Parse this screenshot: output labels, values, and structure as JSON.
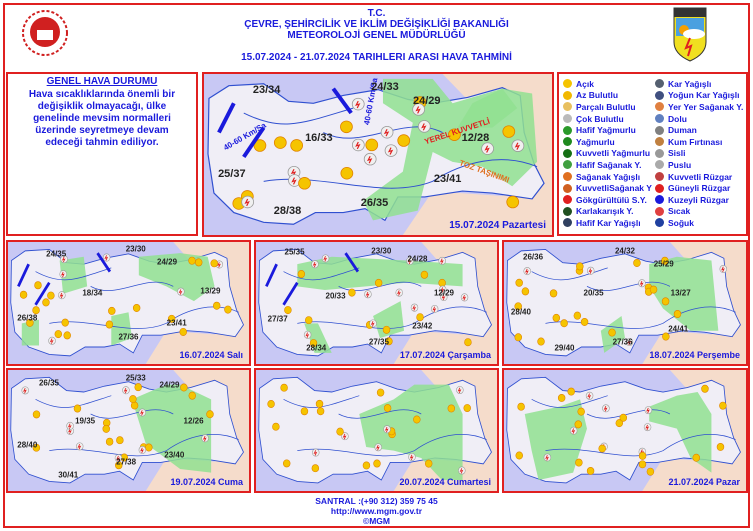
{
  "header": {
    "tc": "T.C.",
    "ministry": "ÇEVRE, ŞEHİRCİLİK VE İKLİM DEĞİŞİKLİĞİ BAKANLIĞI",
    "directorate": "METEOROLOJİ  GENEL  MÜDÜRLÜĞÜ",
    "date_range": "15.07.2024  -  21.07.2024    TARIHLERI  ARASI  HAVA  TAHMİNİ",
    "logo_text": "METEOROLOJİ"
  },
  "general": {
    "title": "GENEL HAVA DURUMU",
    "text": "Hava sıcaklıklarında önemli bir değişiklik olmayacağı, ülke genelinde mevsim normalleri üzerinde seyretmeye devam edeceği tahmin ediliyor."
  },
  "main_map": {
    "date": "15.07.2024 Pazartesi",
    "temps": [
      "23/34",
      "24/33",
      "24/29",
      "16/33",
      "12/28",
      "25/37",
      "23/41",
      "26/35",
      "28/38"
    ],
    "notes": {
      "local_strong": "YEREL KUVVETLİ",
      "dust": "TOZ TAŞINIMI",
      "wind_west": "40-60 Km/Sa",
      "wind_north": "40-60 Km/Sa"
    }
  },
  "days": [
    {
      "date": "16.07.2024 Salı",
      "temps": [
        "24/35",
        "23/30",
        "24/29",
        "13/29",
        "18/34",
        "26/38",
        "23/41",
        "27/36"
      ],
      "note": "TOZ TAŞINIMI"
    },
    {
      "date": "17.07.2024 Çarşamba",
      "temps": [
        "25/35",
        "23/30",
        "24/28",
        "20/33",
        "12/29",
        "27/37",
        "23/42",
        "27/35",
        "28/34"
      ],
      "note": "TOZ TAŞINIMI"
    },
    {
      "date": "18.07.2024 Perşembe",
      "temps": [
        "26/36",
        "24/32",
        "25/29",
        "20/35",
        "13/27",
        "28/40",
        "24/41",
        "27/36",
        "29/40"
      ]
    },
    {
      "date": "19.07.2024 Cuma",
      "temps": [
        "26/35",
        "25/33",
        "24/29",
        "19/35",
        "12/26",
        "28/40",
        "23/40",
        "27/38",
        "30/41"
      ]
    },
    {
      "date": "20.07.2024 Cumartesi",
      "temps": []
    },
    {
      "date": "21.07.2024 Pazar",
      "temps": []
    }
  ],
  "legend": {
    "left": [
      {
        "label": "Açık",
        "icon": "sun-icon",
        "color": "#f5c400"
      },
      {
        "label": "Az Bulutlu",
        "icon": "sun-small-cloud-icon",
        "color": "#f2b800"
      },
      {
        "label": "Parçalı Bulutlu",
        "icon": "partly-cloudy-icon",
        "color": "#e8c060"
      },
      {
        "label": "Çok Bulutlu",
        "icon": "cloudy-icon",
        "color": "#bbbbbb"
      },
      {
        "label": "Hafif Yağmurlu",
        "icon": "light-rain-icon",
        "color": "#2a9a2a"
      },
      {
        "label": "Yağmurlu",
        "icon": "rain-icon",
        "color": "#1f8a1f"
      },
      {
        "label": "Kuvvetli Yağmurlu",
        "icon": "heavy-rain-icon",
        "color": "#157015"
      },
      {
        "label": "Hafif Sağanak Y.",
        "icon": "light-shower-icon",
        "color": "#40a040"
      },
      {
        "label": "Sağanak Yağışlı",
        "icon": "shower-icon",
        "color": "#e07020"
      },
      {
        "label": "KuvvetliSağanak Y",
        "icon": "heavy-shower-icon",
        "color": "#d06020"
      },
      {
        "label": "Gökgürültülü S.Y.",
        "icon": "thunderstorm-icon",
        "color": "#e02020"
      },
      {
        "label": "Karlakarışık Y.",
        "icon": "sleet-icon",
        "color": "#205020"
      },
      {
        "label": "Hafif Kar Yağışlı",
        "icon": "light-snow-icon",
        "color": "#304060"
      }
    ],
    "right": [
      {
        "label": "Kar Yağışlı",
        "icon": "snow-icon",
        "color": "#556070"
      },
      {
        "label": "Yoğun Kar Yağışlı",
        "icon": "heavy-snow-icon",
        "color": "#405080"
      },
      {
        "label": "Yer Yer Sağanak Y.",
        "icon": "scattered-shower-icon",
        "color": "#e08040"
      },
      {
        "label": "Dolu",
        "icon": "hail-icon",
        "color": "#6080c0"
      },
      {
        "label": "Duman",
        "icon": "smoke-icon",
        "color": "#808080"
      },
      {
        "label": "Kum Fırtınası",
        "icon": "sandstorm-icon",
        "color": "#c08040"
      },
      {
        "label": "Sisli",
        "icon": "fog-icon",
        "color": "#999999"
      },
      {
        "label": "Puslu",
        "icon": "mist-icon",
        "color": "#aaaaaa"
      },
      {
        "label": "Kuvvetli Rüzgar",
        "icon": "strong-wind-icon",
        "color": "#c04040"
      },
      {
        "label": "Güneyli Rüzgar",
        "icon": "south-wind-icon",
        "color": "#e02020"
      },
      {
        "label": "Kuzeyli Rüzgar",
        "icon": "north-wind-icon",
        "color": "#1a1adc"
      },
      {
        "label": "Sıcak",
        "icon": "hot-icon",
        "color": "#e04040"
      },
      {
        "label": "Soğuk",
        "icon": "cold-icon",
        "color": "#2040a0"
      }
    ]
  },
  "footer": {
    "phone": "SANTRAL :(+90 312) 359 75 45",
    "url": "http://www.mgm.gov.tr",
    "copyright": "©MGM"
  },
  "colors": {
    "sea": "#c8c8f4",
    "land": "#f0eef6",
    "neighbor": "#f5dccb",
    "rain_area": "#90e090",
    "border": "#e02020",
    "text": "#1a1adc"
  }
}
